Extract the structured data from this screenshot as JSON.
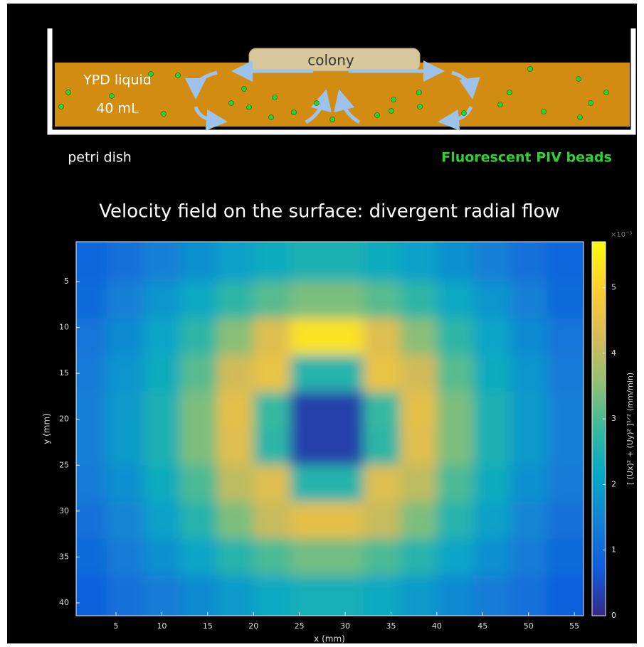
{
  "diagram": {
    "colony": "colony",
    "liquid_name": "YPD liquid",
    "liquid_volume": "40 mL",
    "dish": "petri dish",
    "beads": "Fluorescent PIV beads"
  },
  "chart_data": {
    "type": "heatmap",
    "title": "Velocity field on the surface: divergent radial flow",
    "xlabel": "x (mm)",
    "ylabel": "y (mm)",
    "colorbar_label": "[ (Ux)² + (Uy)² ]¹ᐟ² (mm/min)",
    "colorbar_exponent": "×10⁻³",
    "colormap": "parula",
    "y_reversed": true,
    "xlim": [
      0.65,
      56
    ],
    "xticks": [
      5,
      10,
      15,
      20,
      25,
      30,
      35,
      40,
      45,
      50,
      55
    ],
    "ylim": [
      0.66,
      41.4
    ],
    "yticks": [
      5,
      10,
      15,
      20,
      25,
      30,
      35,
      40
    ],
    "clim": [
      0,
      5.7
    ],
    "cticks": [
      0,
      1,
      2,
      3,
      4,
      5
    ],
    "x": [
      2,
      6,
      10,
      14,
      18,
      22,
      26,
      30,
      34,
      38,
      42,
      46,
      50,
      54
    ],
    "y": [
      3,
      7,
      11,
      15,
      19,
      23,
      27,
      31,
      35,
      39
    ],
    "z": [
      [
        0.9,
        1.1,
        1.4,
        1.7,
        2.0,
        2.3,
        2.5,
        2.5,
        2.3,
        2.0,
        1.7,
        1.4,
        1.1,
        0.9
      ],
      [
        1.0,
        1.4,
        1.8,
        2.2,
        2.7,
        3.1,
        3.4,
        3.4,
        3.1,
        2.7,
        2.2,
        1.8,
        1.4,
        1.0
      ],
      [
        1.2,
        1.6,
        2.1,
        2.7,
        3.5,
        4.4,
        5.3,
        5.3,
        4.4,
        3.5,
        2.7,
        2.1,
        1.6,
        1.2
      ],
      [
        1.3,
        1.8,
        2.3,
        3.1,
        4.2,
        4.6,
        2.6,
        2.6,
        4.6,
        4.2,
        3.1,
        2.3,
        1.8,
        1.3
      ],
      [
        1.4,
        1.9,
        2.5,
        3.4,
        4.5,
        2.8,
        0.3,
        0.3,
        2.8,
        4.5,
        3.4,
        2.5,
        1.9,
        1.4
      ],
      [
        1.4,
        1.9,
        2.5,
        3.4,
        4.4,
        2.7,
        0.3,
        0.3,
        2.7,
        4.4,
        3.4,
        2.5,
        1.9,
        1.4
      ],
      [
        1.3,
        1.7,
        2.3,
        3.0,
        4.0,
        4.4,
        2.6,
        2.6,
        4.4,
        4.0,
        3.0,
        2.3,
        1.7,
        1.3
      ],
      [
        1.1,
        1.5,
        2.0,
        2.6,
        3.4,
        4.1,
        4.5,
        4.5,
        4.1,
        3.4,
        2.6,
        2.0,
        1.5,
        1.1
      ],
      [
        1.0,
        1.3,
        1.7,
        2.1,
        2.6,
        3.0,
        3.3,
        3.3,
        3.0,
        2.6,
        2.1,
        1.7,
        1.3,
        1.0
      ],
      [
        0.8,
        1.1,
        1.3,
        1.6,
        1.9,
        2.2,
        2.4,
        2.4,
        2.2,
        1.9,
        1.6,
        1.3,
        1.1,
        0.8
      ]
    ]
  }
}
